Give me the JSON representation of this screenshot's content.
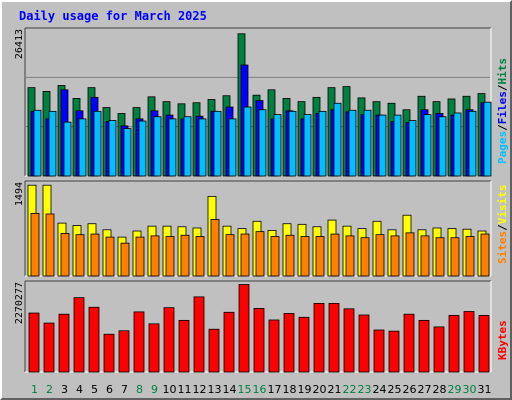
{
  "chart_data": {
    "type": "bar",
    "title": "Daily usage for March 2025",
    "categories": [
      "1",
      "2",
      "3",
      "4",
      "5",
      "6",
      "7",
      "8",
      "9",
      "10",
      "11",
      "12",
      "13",
      "14",
      "15",
      "16",
      "17",
      "18",
      "19",
      "20",
      "21",
      "22",
      "23",
      "24",
      "25",
      "26",
      "27",
      "28",
      "29",
      "30",
      "31"
    ],
    "weekend_days": [
      "1",
      "2",
      "8",
      "9",
      "15",
      "16",
      "22",
      "23",
      "29",
      "30"
    ],
    "panels": [
      {
        "id": "hits-panel",
        "max_label": "26413",
        "ylim": [
          0,
          27100
        ],
        "series": [
          {
            "name": "Hits",
            "color": "#008040",
            "values": [
              16400,
              15700,
              16800,
              14400,
              16400,
              12700,
              11600,
              12700,
              14700,
              13800,
              13400,
              13600,
              14200,
              14900,
              26400,
              15000,
              16000,
              14400,
              13800,
              14600,
              16400,
              16600,
              14500,
              13800,
              13500,
              12300,
              14800,
              13800,
              14300,
              14800,
              15300
            ]
          },
          {
            "name": "Files",
            "color": "#0000ff",
            "values": [
              12000,
              10600,
              16000,
              12100,
              14600,
              10100,
              9300,
              10600,
              12100,
              11300,
              10600,
              11100,
              12000,
              12800,
              20600,
              14000,
              10600,
              12100,
              10600,
              11600,
              12300,
              11900,
              11400,
              11300,
              10100,
              9900,
              12300,
              11600,
              11300,
              12300,
              13600
            ]
          },
          {
            "name": "Pages",
            "color": "#00bfff",
            "values": [
              12200,
              12000,
              10000,
              10600,
              12000,
              10300,
              8800,
              10200,
              11000,
              10600,
              11000,
              10600,
              12000,
              10600,
              12800,
              12300,
              11400,
              12000,
              11400,
              12000,
              13500,
              12200,
              12200,
              11300,
              11300,
              10300,
              11400,
              11000,
              11700,
              12000,
              13700
            ]
          }
        ]
      },
      {
        "id": "visits-panel",
        "max_label": "1494",
        "ylim": [
          0,
          1530
        ],
        "series": [
          {
            "name": "Visits",
            "color": "#ffff00",
            "values": [
              1494,
              1494,
              870,
              830,
              860,
              760,
              640,
              740,
              820,
              820,
              810,
              790,
              1310,
              820,
              780,
              900,
              750,
              860,
              850,
              810,
              920,
              820,
              780,
              900,
              760,
              1000,
              760,
              790,
              780,
              770,
              740
            ]
          },
          {
            "name": "Sites",
            "color": "#ff8000",
            "values": [
              1030,
              1020,
              700,
              680,
              690,
              640,
              540,
              640,
              660,
              650,
              670,
              650,
              930,
              680,
              690,
              730,
              650,
              670,
              650,
              650,
              690,
              660,
              630,
              680,
              660,
              710,
              660,
              630,
              630,
              650,
              690
            ]
          }
        ]
      },
      {
        "id": "kbytes-panel",
        "max_label": "2270277",
        "ylim": [
          0,
          2310000
        ],
        "series": [
          {
            "name": "KBytes",
            "color": "#ff0000",
            "values": [
              1530000,
              1270000,
              1500000,
              1930000,
              1680000,
              980000,
              1070000,
              1560000,
              1250000,
              1670000,
              1340000,
              1950000,
              1110000,
              1550000,
              2270277,
              1650000,
              1350000,
              1520000,
              1420000,
              1780000,
              1780000,
              1640000,
              1480000,
              1090000,
              1060000,
              1500000,
              1340000,
              1170000,
              1470000,
              1570000,
              1470000
            ]
          }
        ]
      }
    ],
    "side_labels": {
      "top": [
        {
          "text": "Pages",
          "color": "#00bfff"
        },
        {
          "text": "/",
          "color": "#000000"
        },
        {
          "text": "Files",
          "color": "#0000ff"
        },
        {
          "text": "/",
          "color": "#000000"
        },
        {
          "text": "Hits",
          "color": "#008040"
        }
      ],
      "middle": [
        {
          "text": "Sites",
          "color": "#ff8000"
        },
        {
          "text": "/",
          "color": "#000000"
        },
        {
          "text": "Visits",
          "color": "#ffff00"
        }
      ],
      "bottom": [
        {
          "text": "KBytes",
          "color": "#ff0000"
        }
      ]
    },
    "colors": {
      "background": "#c0c0c0",
      "title": "#0000ff",
      "weekday_label": "#000000",
      "weekend_label": "#008040",
      "gridline": "#808080"
    }
  }
}
